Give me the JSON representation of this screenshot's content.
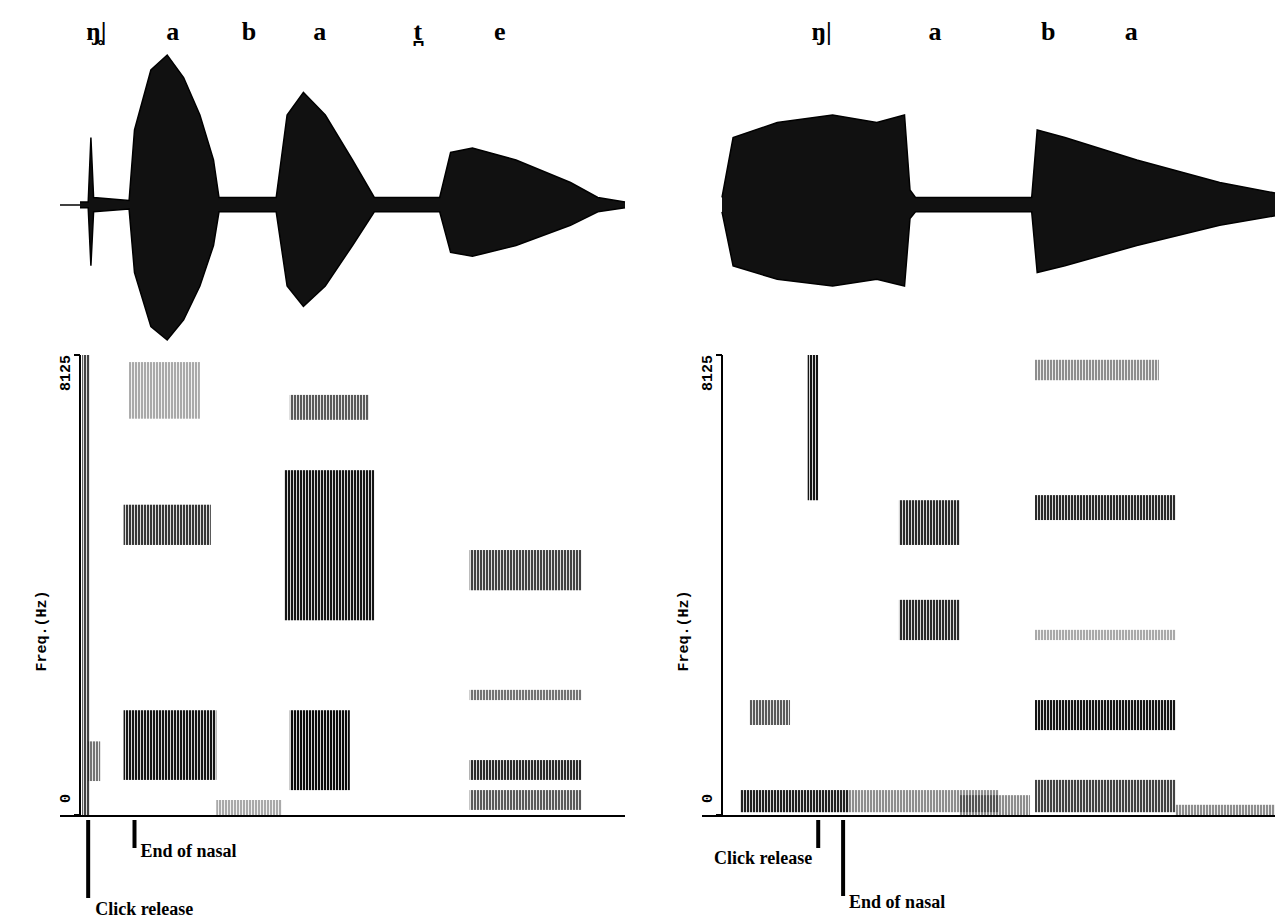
{
  "chart_data": [
    {
      "type": "spectrogram",
      "segments": [
        {
          "label": "ŋ̥|",
          "x": 3
        },
        {
          "label": "a",
          "x": 17
        },
        {
          "label": "b",
          "x": 31
        },
        {
          "label": "a",
          "x": 44
        },
        {
          "label": "t̪",
          "x": 62
        },
        {
          "label": "e",
          "x": 77
        }
      ],
      "ylabel": "Freq.(Hz)",
      "xlim": [
        0,
        100
      ],
      "ylim": [
        0,
        8125
      ],
      "yticks": [
        0,
        8125
      ],
      "tick_labels": "y",
      "envelope": {
        "x": [
          0,
          1.5,
          2,
          2.5,
          9,
          10,
          13,
          16,
          19,
          22,
          24.5,
          25.5,
          36,
          38,
          41,
          45,
          50,
          54,
          66,
          68,
          72,
          80,
          90,
          95,
          100
        ],
        "values": [
          0.02,
          0.02,
          0.45,
          0.05,
          0.03,
          0.5,
          0.9,
          1.0,
          0.85,
          0.6,
          0.3,
          0.05,
          0.05,
          0.6,
          0.75,
          0.6,
          0.3,
          0.05,
          0.05,
          0.35,
          0.38,
          0.3,
          0.15,
          0.05,
          0.02
        ]
      },
      "bands": [
        {
          "x": [
            0.4,
            1.8
          ],
          "y": [
            0,
            8125
          ],
          "level": 0.7
        },
        {
          "x": [
            1.5,
            3.7
          ],
          "y": [
            600,
            1300
          ],
          "level": 0.5
        },
        {
          "x": [
            8,
            25
          ],
          "y": [
            620,
            1850
          ],
          "level": 0.9
        },
        {
          "x": [
            8,
            24
          ],
          "y": [
            4770,
            5480
          ],
          "level": 0.75
        },
        {
          "x": [
            9,
            22
          ],
          "y": [
            7000,
            8000
          ],
          "level": 0.3
        },
        {
          "x": [
            25,
            37
          ],
          "y": [
            0,
            265
          ],
          "level": 0.3
        },
        {
          "x": [
            38.5,
            49.5
          ],
          "y": [
            440,
            1850
          ],
          "level": 0.95
        },
        {
          "x": [
            37.5,
            54
          ],
          "y": [
            3440,
            6090
          ],
          "level": 0.9
        },
        {
          "x": [
            38.5,
            53
          ],
          "y": [
            6980,
            7420
          ],
          "level": 0.6
        },
        {
          "x": [
            71.5,
            92
          ],
          "y": [
            3970,
            4680
          ],
          "level": 0.7
        },
        {
          "x": [
            71.5,
            92
          ],
          "y": [
            2030,
            2210
          ],
          "level": 0.5
        },
        {
          "x": [
            71.5,
            92
          ],
          "y": [
            620,
            970
          ],
          "level": 0.8
        },
        {
          "x": [
            71.5,
            92
          ],
          "y": [
            90,
            440
          ],
          "level": 0.6
        }
      ],
      "annotations": [
        {
          "text": "Click release",
          "x": 1.5
        },
        {
          "text": "End of nasal",
          "x": 10
        }
      ]
    },
    {
      "type": "spectrogram",
      "segments": [
        {
          "label": "ŋ|",
          "x": 18
        },
        {
          "label": "a",
          "x": 38.5
        },
        {
          "label": "b",
          "x": 59
        },
        {
          "label": "a",
          "x": 74
        }
      ],
      "ylabel": "Freq.(Hz)",
      "xlim": [
        0,
        100
      ],
      "ylim": [
        0,
        8125
      ],
      "yticks": [
        0,
        8125
      ],
      "tick_labels": "y",
      "envelope": {
        "x": [
          0,
          2,
          10,
          20,
          28,
          33,
          34,
          35,
          56,
          57,
          62,
          75,
          90,
          100
        ],
        "values": [
          0.05,
          0.45,
          0.55,
          0.6,
          0.55,
          0.6,
          0.1,
          0.05,
          0.05,
          0.5,
          0.45,
          0.3,
          0.15,
          0.08
        ]
      },
      "bands": [
        {
          "x": [
            3.3,
            23
          ],
          "y": [
            50,
            440
          ],
          "level": 0.85
        },
        {
          "x": [
            5,
            12.3
          ],
          "y": [
            1590,
            2030
          ],
          "level": 0.6
        },
        {
          "x": [
            15.5,
            17.4
          ],
          "y": [
            5560,
            8125
          ],
          "level": 0.9
        },
        {
          "x": [
            32,
            43
          ],
          "y": [
            4770,
            5560
          ],
          "level": 0.8
        },
        {
          "x": [
            32,
            43
          ],
          "y": [
            3090,
            3800
          ],
          "level": 0.8
        },
        {
          "x": [
            23,
            50
          ],
          "y": [
            50,
            440
          ],
          "level": 0.4
        },
        {
          "x": [
            43,
            55.7
          ],
          "y": [
            0,
            350
          ],
          "level": 0.4
        },
        {
          "x": [
            56.6,
            82
          ],
          "y": [
            1500,
            2030
          ],
          "level": 0.9
        },
        {
          "x": [
            56.6,
            82
          ],
          "y": [
            5210,
            5650
          ],
          "level": 0.8
        },
        {
          "x": [
            56.6,
            79
          ],
          "y": [
            7680,
            8040
          ],
          "level": 0.4
        },
        {
          "x": [
            56.6,
            82
          ],
          "y": [
            50,
            620
          ],
          "level": 0.7
        },
        {
          "x": [
            56.6,
            82
          ],
          "y": [
            3090,
            3270
          ],
          "level": 0.3
        },
        {
          "x": [
            82,
            100
          ],
          "y": [
            0,
            180
          ],
          "level": 0.4
        }
      ],
      "annotations": [
        {
          "text": "Click release",
          "x": 17.4
        },
        {
          "text": "End of nasal",
          "x": 21.9
        }
      ]
    }
  ]
}
